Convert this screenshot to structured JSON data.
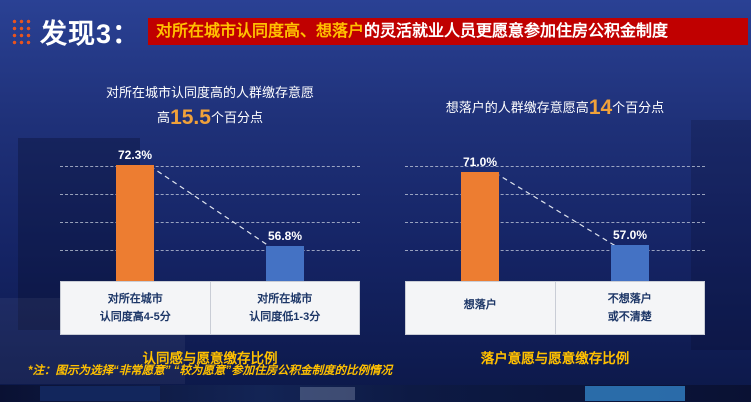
{
  "slide": {
    "badge": "发现3：",
    "title_highlight": "对所在城市认同度高、想落户",
    "title_rest": "的灵活就业人员更愿意参加住房公积金制度",
    "note": "*注：图示为选择“非常愿意” “较为愿意”参加住房公积金制度的比例情况"
  },
  "colors": {
    "accent_orange_bar": "#ED7D31",
    "accent_orange_number": "#F0A13A",
    "accent_yellow": "#FFC000",
    "bar_blue": "#4472C4",
    "banner_red": "#C00000",
    "background_navy": "#1E3078"
  },
  "charts_meta": [
    {
      "subtitle_line1": "对所在城市认同度高的人群缴存意愿",
      "subtitle_prefix": "高",
      "subtitle_value": "15.5",
      "subtitle_suffix": "个百分点",
      "category_lines": [
        [
          "对所在城市",
          "认同度高4-5分"
        ],
        [
          "对所在城市",
          "认同度低1-3分"
        ]
      ]
    },
    {
      "subtitle_prefix": "想落户的人群缴存意愿高",
      "subtitle_value": "14",
      "subtitle_suffix": "个百分点",
      "category_lines": [
        [
          "想落户",
          ""
        ],
        [
          "不想落户",
          "或不清楚"
        ]
      ]
    }
  ],
  "chart_data": [
    {
      "type": "bar",
      "title": "认同感与愿意缴存比例",
      "categories": [
        "对所在城市认同度高4-5分",
        "对所在城市认同度低1-3分"
      ],
      "values": [
        72.3,
        56.8
      ],
      "value_labels": [
        "72.3%",
        "56.8%"
      ],
      "bar_colors": [
        "#ED7D31",
        "#4472C4"
      ],
      "annotation": "对所在城市认同度高的人群缴存意愿高15.5个百分点",
      "ylim": [
        50,
        78
      ],
      "grid": true,
      "connector": "dashed line between bar tops",
      "legend": "none"
    },
    {
      "type": "bar",
      "title": "落户意愿与愿意缴存比例",
      "categories": [
        "想落户",
        "不想落户或不清楚"
      ],
      "values": [
        71.0,
        57.0
      ],
      "value_labels": [
        "71.0%",
        "57.0%"
      ],
      "bar_colors": [
        "#ED7D31",
        "#4472C4"
      ],
      "annotation": "想落户的人群缴存意愿高14个百分点",
      "ylim": [
        50,
        78
      ],
      "grid": true,
      "connector": "dashed line between bar tops",
      "legend": "none"
    }
  ]
}
